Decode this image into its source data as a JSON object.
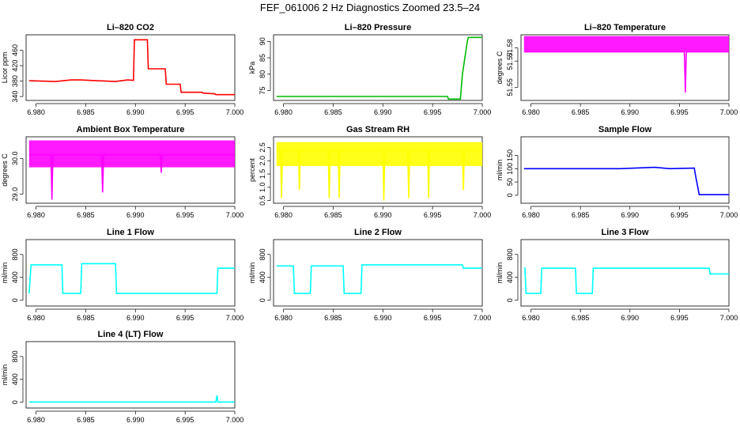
{
  "title": "FEF_061006  2 Hz Diagnostics Zoomed 23.5–24",
  "chart_data": [
    {
      "type": "line",
      "title": "Li–820 CO2",
      "ylabel": "Licor ppm",
      "color": "#ff0000",
      "xlim": [
        6.979,
        7.0
      ],
      "xticks": [
        "6.980",
        "6.985",
        "6.990",
        "6.995",
        "7.000"
      ],
      "ylim": [
        330,
        500
      ],
      "yticks": [
        "340",
        "380",
        "420",
        "460"
      ],
      "series": [
        {
          "x": [
            6.9793,
            6.982,
            6.9835,
            6.9845,
            6.988,
            6.9892,
            6.9898,
            6.9899,
            6.9912,
            6.9913,
            6.993,
            6.9931,
            6.9945,
            6.9946,
            6.9967,
            6.9968,
            6.998,
            6.9981,
            7.0
          ],
          "values": [
            381,
            379,
            383,
            383,
            379,
            383,
            382,
            487,
            487,
            412,
            412,
            372,
            372,
            351,
            351,
            349,
            347,
            345,
            345
          ]
        }
      ]
    },
    {
      "type": "line",
      "title": "Li–820 Pressure",
      "ylabel": "kPa",
      "color": "#00bb00",
      "xlim": [
        6.979,
        7.0
      ],
      "xticks": [
        "6.980",
        "6.985",
        "6.990",
        "6.995",
        "7.000"
      ],
      "ylim": [
        72,
        92
      ],
      "yticks": [
        "75",
        "80",
        "85",
        "90"
      ],
      "series": [
        {
          "x": [
            6.9793,
            6.9965,
            6.9966,
            6.9978,
            6.998,
            6.9985,
            6.9986,
            7.0
          ],
          "values": [
            73.2,
            73.2,
            72.4,
            72.4,
            80,
            90,
            91.2,
            91.2
          ]
        }
      ]
    },
    {
      "type": "line",
      "title": "Li–820 Temperature",
      "ylabel": "degrees C",
      "color": "#ff00ff",
      "xlim": [
        6.979,
        7.0
      ],
      "xticks": [
        "6.980",
        "6.985",
        "6.990",
        "6.995",
        "7.000"
      ],
      "ylim": [
        51.54,
        51.59
      ],
      "yticks": [
        "51.55",
        "51.57",
        "51.58"
      ],
      "series": [
        {
          "x": [
            6.9793,
            6.9955,
            6.9956,
            6.9957,
            7.0
          ],
          "values": [
            51.577,
            51.577,
            51.546,
            51.577,
            51.577
          ]
        }
      ],
      "band": [
        51.577,
        51.589
      ]
    },
    {
      "type": "line",
      "title": "Ambient Box Temperature",
      "ylabel": "degrees C",
      "color": "#ff00ff",
      "xlim": [
        6.979,
        7.0
      ],
      "xticks": [
        "6.980",
        "6.985",
        "6.990",
        "6.995",
        "7.000"
      ],
      "ylim": [
        28.75,
        30.6
      ],
      "yticks": [
        "29.0",
        "30.0"
      ],
      "series": [
        {
          "x": [
            6.9793,
            6.9815,
            6.9816,
            6.9817,
            6.9845,
            6.9866,
            6.9867,
            6.9868,
            6.9925,
            6.9926,
            6.9927,
            7.0
          ],
          "values": [
            30.1,
            30.1,
            28.85,
            30.1,
            30.1,
            30.1,
            29.05,
            30.1,
            30.1,
            29.6,
            30.1,
            30.1
          ]
        }
      ],
      "band": [
        29.75,
        30.5
      ]
    },
    {
      "type": "line",
      "title": "Gas Stream RH",
      "ylabel": "percent",
      "color": "#ffff00",
      "xlim": [
        6.979,
        7.0
      ],
      "xticks": [
        "6.980",
        "6.985",
        "6.990",
        "6.995",
        "7.000"
      ],
      "ylim": [
        0.4,
        2.9
      ],
      "yticks": [
        "0.5",
        "1.0",
        "1.5",
        "2.0",
        "2.5"
      ],
      "series": [
        {
          "x": [
            6.9793,
            6.9797,
            6.9798,
            6.9799,
            6.9815,
            6.9816,
            6.9817,
            6.9845,
            6.9846,
            6.9847,
            6.9855,
            6.9856,
            6.9857,
            6.99,
            6.9901,
            6.9902,
            6.9925,
            6.9926,
            6.9927,
            6.9945,
            6.9946,
            6.9947,
            6.998,
            6.9981,
            6.9982,
            7.0
          ],
          "values": [
            2.4,
            2.4,
            0.6,
            2.4,
            2.4,
            0.9,
            2.4,
            2.4,
            0.6,
            2.4,
            2.4,
            0.6,
            2.4,
            2.4,
            0.5,
            2.4,
            2.4,
            0.6,
            2.4,
            2.4,
            0.6,
            2.4,
            2.4,
            0.9,
            2.4,
            2.4
          ]
        }
      ],
      "band": [
        1.8,
        2.7
      ]
    },
    {
      "type": "line",
      "title": "Sample Flow",
      "ylabel": "ml/min",
      "color": "#0000ff",
      "xlim": [
        6.979,
        7.0
      ],
      "xticks": [
        "6.980",
        "6.985",
        "6.990",
        "6.995",
        "7.000"
      ],
      "ylim": [
        -30,
        220
      ],
      "yticks": [
        "0",
        "50",
        "100",
        "150"
      ],
      "series": [
        {
          "x": [
            6.9793,
            6.989,
            6.9925,
            6.994,
            6.9965,
            6.9966,
            6.997,
            7.0
          ],
          "values": [
            100,
            100,
            105,
            100,
            102,
            80,
            2,
            2
          ]
        }
      ]
    },
    {
      "type": "line",
      "title": "Line 1 Flow",
      "ylabel": "ml/min",
      "color": "#00ffff",
      "xlim": [
        6.979,
        7.0
      ],
      "xticks": [
        "6.980",
        "6.985",
        "6.990",
        "6.995",
        "7.000"
      ],
      "ylim": [
        -100,
        1060
      ],
      "yticks": [
        "0",
        "400",
        "800"
      ],
      "series": [
        {
          "x": [
            6.9793,
            6.9795,
            6.9826,
            6.9827,
            6.9845,
            6.9846,
            6.988,
            6.9881,
            6.9982,
            6.9983,
            7.0
          ],
          "values": [
            120,
            620,
            620,
            120,
            120,
            640,
            640,
            120,
            120,
            560,
            560
          ]
        }
      ]
    },
    {
      "type": "line",
      "title": "Line 2 Flow",
      "ylabel": "ml/min",
      "color": "#00ffff",
      "xlim": [
        6.979,
        7.0
      ],
      "xticks": [
        "6.980",
        "6.985",
        "6.990",
        "6.995",
        "7.000"
      ],
      "ylim": [
        -100,
        1060
      ],
      "yticks": [
        "0",
        "400",
        "800"
      ],
      "series": [
        {
          "x": [
            6.9793,
            6.981,
            6.9811,
            6.9827,
            6.9828,
            6.986,
            6.9861,
            6.9878,
            6.9879,
            6.998,
            6.9981,
            7.0
          ],
          "values": [
            600,
            600,
            120,
            120,
            600,
            600,
            120,
            120,
            620,
            620,
            560,
            560
          ]
        }
      ]
    },
    {
      "type": "line",
      "title": "Line 3 Flow",
      "ylabel": "ml/min",
      "color": "#00ffff",
      "xlim": [
        6.979,
        7.0
      ],
      "xticks": [
        "6.980",
        "6.985",
        "6.990",
        "6.995",
        "7.000"
      ],
      "ylim": [
        -100,
        1060
      ],
      "yticks": [
        "0",
        "400",
        "800"
      ],
      "series": [
        {
          "x": [
            6.9793,
            6.9794,
            6.9795,
            6.981,
            6.9811,
            6.9845,
            6.9846,
            6.9862,
            6.9863,
            6.998,
            6.9981,
            7.0
          ],
          "values": [
            560,
            560,
            120,
            120,
            560,
            560,
            120,
            120,
            560,
            560,
            460,
            460
          ]
        }
      ]
    },
    {
      "type": "line",
      "title": "Line 4 (LT) Flow",
      "ylabel": "ml/min",
      "color": "#00ffff",
      "xlim": [
        6.979,
        7.0
      ],
      "xticks": [
        "6.980",
        "6.985",
        "6.990",
        "6.995",
        "7.000"
      ],
      "ylim": [
        -100,
        1060
      ],
      "yticks": [
        "0",
        "400",
        "800"
      ],
      "series": [
        {
          "x": [
            6.9793,
            6.9981,
            6.9982,
            6.9983,
            7.0
          ],
          "values": [
            5,
            5,
            120,
            5,
            5
          ]
        }
      ]
    }
  ]
}
